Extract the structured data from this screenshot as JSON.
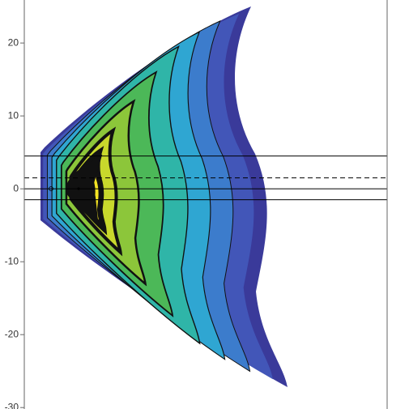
{
  "chart_data": {
    "type": "contour",
    "ylim": [
      -30.2,
      25.9
    ],
    "yticks": [
      -30,
      -20,
      -10,
      0,
      10,
      20
    ],
    "hlines": [
      {
        "value": 4.5,
        "style": "solid"
      },
      {
        "value": 1.5,
        "style": "dashed"
      },
      {
        "value": 0,
        "style": "solid"
      },
      {
        "value": -1.5,
        "style": "solid"
      }
    ],
    "colors": [
      "#3a3a9a",
      "#4256b8",
      "#3c7ccc",
      "#2fa6d2",
      "#2fb5a8",
      "#4cb858",
      "#8cc63a",
      "#c8d82c",
      "#f4e424",
      "#f0a020",
      "#e8501c"
    ]
  }
}
